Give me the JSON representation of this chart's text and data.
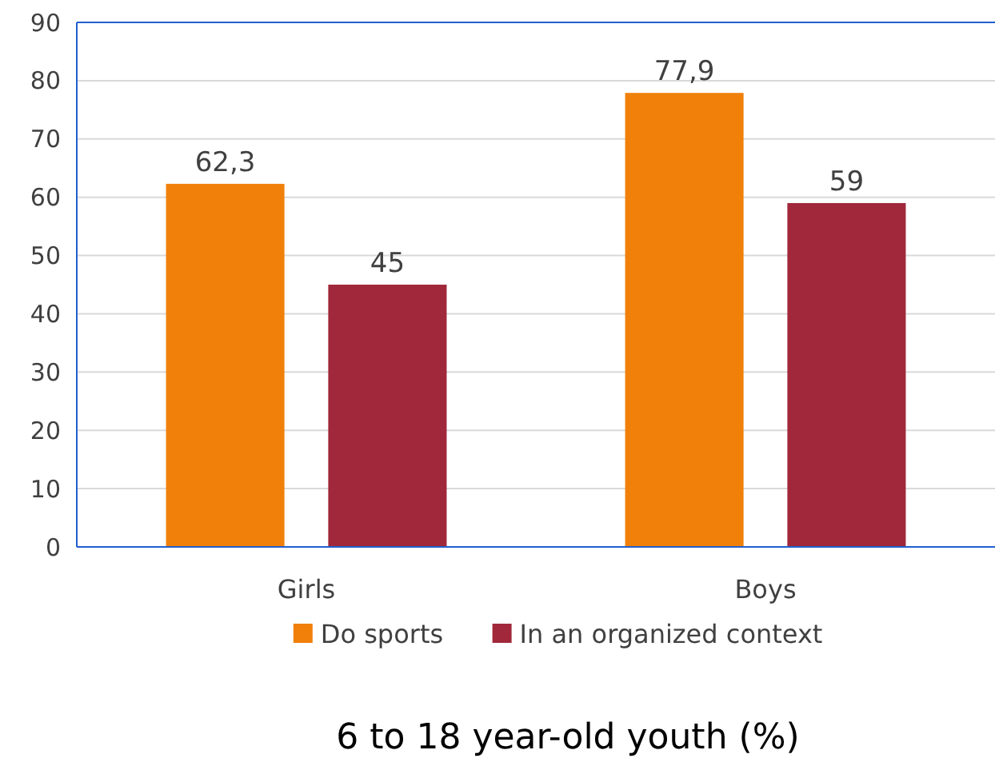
{
  "chart_data": {
    "type": "bar",
    "xlabel": "6 to 18 year-old youth (%)",
    "categories": [
      "Girls",
      "Boys"
    ],
    "series": [
      {
        "name": "Do sports",
        "color": "#f0800a",
        "values": [
          62.3,
          77.9
        ],
        "value_labels": [
          "62,3",
          "77,9"
        ]
      },
      {
        "name": "In an organized context",
        "color": "#a0283a",
        "values": [
          45,
          59
        ],
        "value_labels": [
          "45",
          "59"
        ]
      }
    ],
    "ylim": [
      0,
      90
    ],
    "yticks": [
      0,
      10,
      20,
      30,
      40,
      50,
      60,
      70,
      80,
      90
    ],
    "grid": "y",
    "legend": "bottom"
  }
}
